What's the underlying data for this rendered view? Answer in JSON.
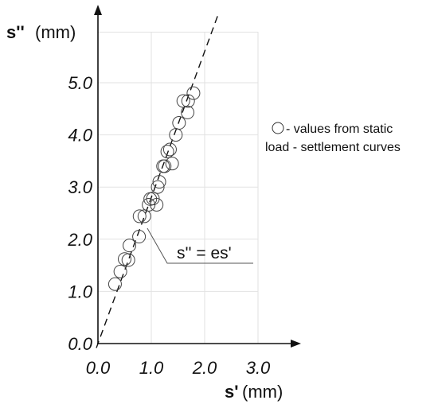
{
  "chart_data": {
    "type": "scatter",
    "xlim": [
      0,
      3
    ],
    "ylim": [
      0,
      5
    ],
    "x_ticks": [
      "0.0",
      "1.0",
      "2.0",
      "3.0"
    ],
    "y_ticks": [
      "0.0",
      "1.0",
      "2.0",
      "3.0",
      "4.0",
      "5.0"
    ],
    "xlabel": {
      "symbol": "s'",
      "unit": "(mm)"
    },
    "ylabel": {
      "symbol": "s''",
      "unit": "(mm)"
    },
    "grid": true,
    "series": [
      {
        "name": "values from static load - settlement curves",
        "marker": "open-circle",
        "points": [
          [
            0.32,
            1.14
          ],
          [
            0.42,
            1.38
          ],
          [
            0.5,
            1.62
          ],
          [
            0.57,
            1.6
          ],
          [
            0.59,
            1.88
          ],
          [
            0.77,
            2.05
          ],
          [
            0.78,
            2.44
          ],
          [
            0.87,
            2.44
          ],
          [
            0.95,
            2.66
          ],
          [
            0.98,
            2.77
          ],
          [
            1.03,
            2.78
          ],
          [
            1.1,
            2.66
          ],
          [
            1.12,
            3.0
          ],
          [
            1.15,
            3.1
          ],
          [
            1.22,
            3.4
          ],
          [
            1.25,
            3.4
          ],
          [
            1.3,
            3.68
          ],
          [
            1.35,
            3.72
          ],
          [
            1.39,
            3.45
          ],
          [
            1.46,
            4.0
          ],
          [
            1.52,
            4.23
          ],
          [
            1.6,
            4.65
          ],
          [
            1.68,
            4.43
          ],
          [
            1.69,
            4.65
          ],
          [
            1.79,
            4.8
          ]
        ]
      }
    ],
    "fit_line": {
      "label": "s'' = es'",
      "slope": 2.8,
      "style": "dashed"
    },
    "legend": {
      "label": "- values from static load - settlement curves",
      "position": "right"
    }
  }
}
